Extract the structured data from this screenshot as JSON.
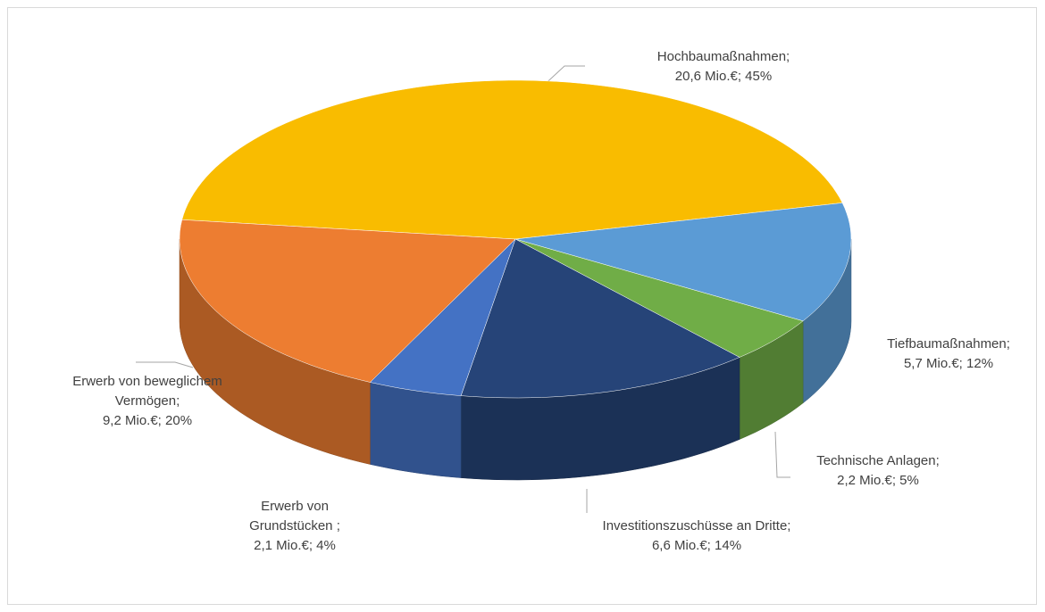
{
  "chart_data": {
    "type": "pie3d",
    "categories": [
      "Hochbaumaßnahmen;",
      "Tiefbaumaßnahmen;",
      "Technische Anlagen;",
      "Investitionszuschüsse an Dritte;",
      "Erwerb von Grundstücken ;",
      "Erwerb von beweglichem Vermögen;"
    ],
    "values": [
      20.6,
      5.7,
      2.2,
      6.6,
      2.1,
      9.2
    ],
    "value_labels": [
      "20,6 Mio.€; 45%",
      "5,7 Mio.€; 12%",
      "2,2 Mio.€; 5%",
      "6,6 Mio.€; 14%",
      "2,1 Mio.€; 4%",
      "9,2 Mio.€; 20%"
    ],
    "colors": [
      "#f9bc00",
      "#5b9bd5",
      "#70ad47",
      "#264478",
      "#4472c4",
      "#ed7d31"
    ]
  }
}
